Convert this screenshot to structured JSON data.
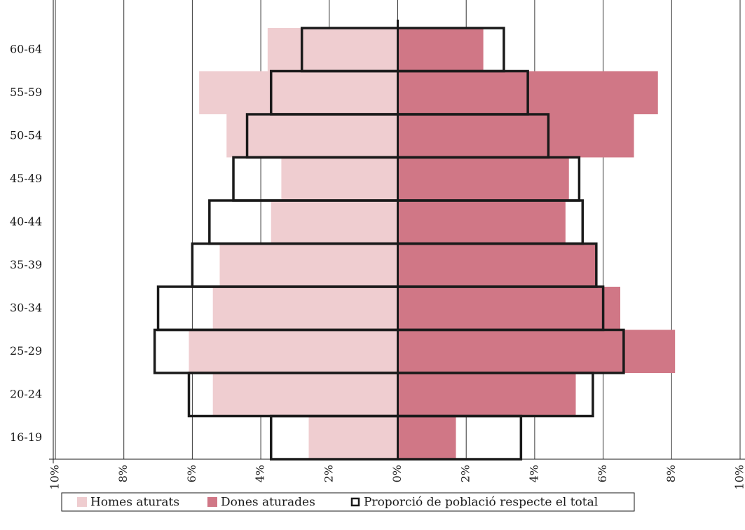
{
  "chart_data": {
    "type": "pyramid",
    "categories": [
      "60-64",
      "55-59",
      "50-54",
      "45-49",
      "40-44",
      "35-39",
      "30-34",
      "25-29",
      "20-24",
      "16-19"
    ],
    "series": [
      {
        "name": "Homes aturats",
        "color": "#efcdd0",
        "side": "left",
        "values": [
          3.8,
          5.8,
          5.0,
          3.4,
          3.7,
          5.2,
          5.4,
          6.1,
          5.4,
          2.6
        ]
      },
      {
        "name": "Dones aturades",
        "color": "#d07786",
        "side": "right",
        "values": [
          2.5,
          7.6,
          6.9,
          5.0,
          4.9,
          5.8,
          6.5,
          8.1,
          5.2,
          1.7
        ]
      },
      {
        "name": "Proporció de població respecte el total",
        "color": "#1a1a1a",
        "outline": true,
        "values": [
          [
            2.8,
            3.1
          ],
          [
            3.7,
            3.8
          ],
          [
            4.4,
            4.4
          ],
          [
            4.8,
            5.3
          ],
          [
            5.5,
            5.4
          ],
          [
            6.0,
            5.8
          ],
          [
            7.0,
            6.0
          ],
          [
            7.1,
            6.6
          ],
          [
            6.1,
            5.7
          ],
          [
            3.7,
            3.6
          ]
        ]
      }
    ],
    "xlim": [
      -10,
      10
    ],
    "xticks": [
      {
        "value": -10,
        "label": "10%"
      },
      {
        "value": -8,
        "label": "8%"
      },
      {
        "value": -6,
        "label": "6%"
      },
      {
        "value": -4,
        "label": "4%"
      },
      {
        "value": -2,
        "label": "2%"
      },
      {
        "value": 0,
        "label": "0%"
      },
      {
        "value": 2,
        "label": "2%"
      },
      {
        "value": 4,
        "label": "4%"
      },
      {
        "value": 6,
        "label": "6%"
      },
      {
        "value": 8,
        "label": "8%"
      },
      {
        "value": 10,
        "label": "10%"
      }
    ],
    "grid": true,
    "legend": "bottom"
  }
}
